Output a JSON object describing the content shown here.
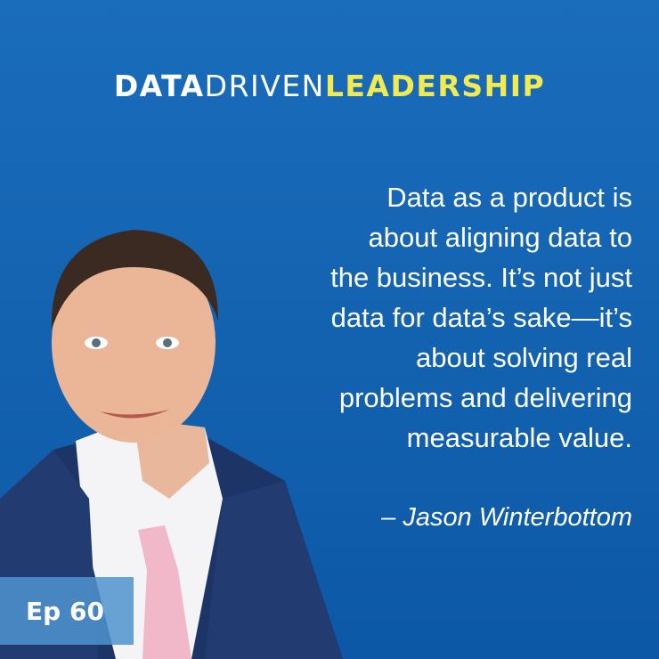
{
  "brand": {
    "part1": "DATA",
    "part2": "DRIVEN",
    "part3": "LEADERSHIP"
  },
  "quote": {
    "lines": [
      "Data as a product is",
      "about aligning data to",
      "the business. It’s not just",
      "data for data’s sake—it’s",
      "about solving real",
      "problems and delivering",
      "measurable value."
    ],
    "attribution": "– Jason Winterbottom"
  },
  "episode": "Ep 60"
}
